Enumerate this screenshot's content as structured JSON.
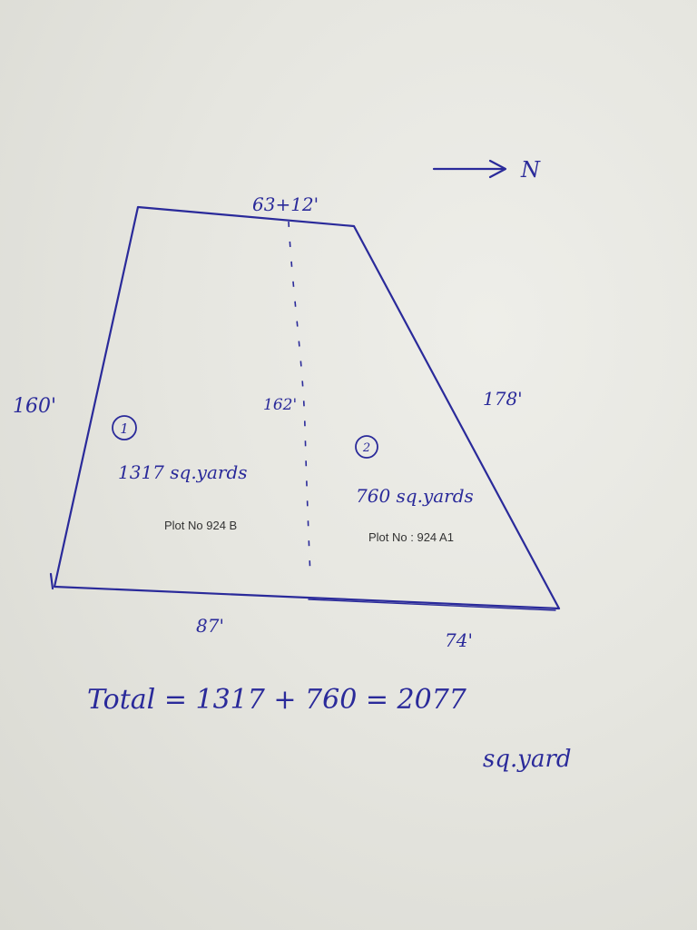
{
  "north": {
    "label": "N"
  },
  "dimensions": {
    "top": "63+12'",
    "left": "160'",
    "middle": "162'",
    "right": "178'",
    "bottom_left": "87'",
    "bottom_right": "74'"
  },
  "plots": [
    {
      "number": "1",
      "area": "1317 sq.yards",
      "label": "Plot No 924 B"
    },
    {
      "number": "2",
      "area": "760 sq.yards",
      "label": "Plot No : 924 A1"
    }
  ],
  "total": {
    "line": "Total = 1317 + 760 = 2077",
    "unit": "sq.yard"
  }
}
